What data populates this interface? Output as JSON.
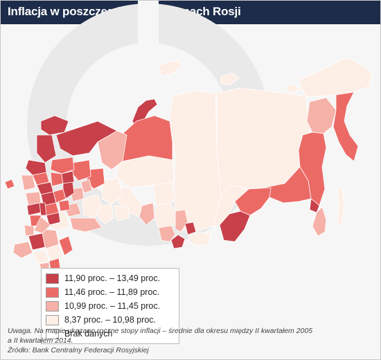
{
  "title": "Inflacja w poszczególnych regionach Rosji",
  "legend": {
    "items": [
      {
        "label": "11,90 proc. – 13,49 proc.",
        "color": "#c7404a"
      },
      {
        "label": "11,46 proc. – 11,89 proc.",
        "color": "#ec6a66"
      },
      {
        "label": "10,99 proc. – 11,45 proc.",
        "color": "#f6b1a8"
      },
      {
        "label": "8,37 proc. – 10,98 proc.",
        "color": "#fdeee6"
      },
      {
        "label": "Brak danych",
        "color": "#ffffff"
      }
    ]
  },
  "notes": {
    "line1": "Uwaga. Na mapie ukazano roczne stopy inflacji – średnie dla okresu między II kwartałem 2005",
    "line2": "a II kwartałem 2014.",
    "line3": "Źródło: Bank Centralny Federacji Rosyjskiej"
  },
  "colors": {
    "title_bar": "#1c2c4a",
    "background": "#f6f6f6",
    "watermark": "#eaeaea",
    "region_border": "#ffffff"
  }
}
